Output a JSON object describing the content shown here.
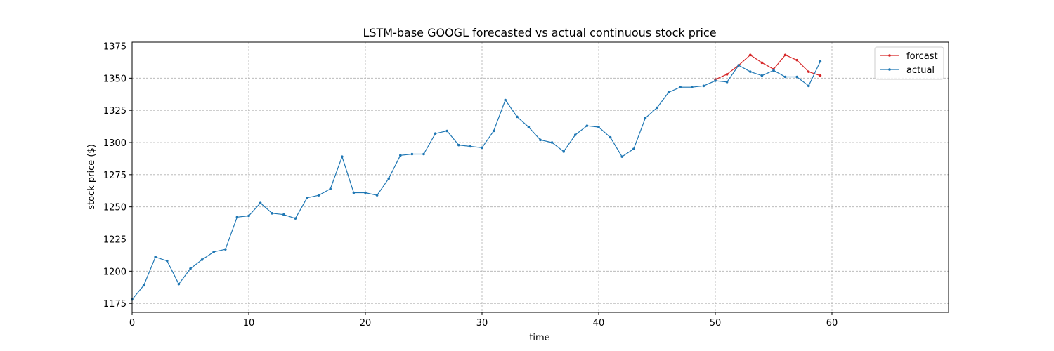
{
  "chart_data": {
    "type": "line",
    "title": "LSTM-base GOOGL forecasted vs actual continuous stock price",
    "xlabel": "time",
    "ylabel": "stock price ($)",
    "xlim": [
      0,
      70
    ],
    "ylim": [
      1168,
      1378
    ],
    "xticks": [
      0,
      10,
      20,
      30,
      40,
      50,
      60
    ],
    "yticks": [
      1175,
      1200,
      1225,
      1250,
      1275,
      1300,
      1325,
      1350,
      1375
    ],
    "grid": true,
    "legend_position": "top-right",
    "series": [
      {
        "name": "forcast",
        "color": "#d62728",
        "x": [
          50,
          51,
          52,
          53,
          54,
          55,
          56,
          57,
          58,
          59
        ],
        "y": [
          1349,
          1353,
          1360,
          1368,
          1362,
          1357,
          1368,
          1364,
          1355,
          1352
        ]
      },
      {
        "name": "actual",
        "color": "#1f77b4",
        "x": [
          0,
          1,
          2,
          3,
          4,
          5,
          6,
          7,
          8,
          9,
          10,
          11,
          12,
          13,
          14,
          15,
          16,
          17,
          18,
          19,
          20,
          21,
          22,
          23,
          24,
          25,
          26,
          27,
          28,
          29,
          30,
          31,
          32,
          33,
          34,
          35,
          36,
          37,
          38,
          39,
          40,
          41,
          42,
          43,
          44,
          45,
          46,
          47,
          48,
          49,
          50,
          51,
          52,
          53,
          54,
          55,
          56,
          57,
          58,
          59
        ],
        "y": [
          1178,
          1189,
          1211,
          1208,
          1190,
          1202,
          1209,
          1215,
          1217,
          1242,
          1243,
          1253,
          1245,
          1244,
          1241,
          1257,
          1259,
          1264,
          1289,
          1261,
          1261,
          1259,
          1272,
          1290,
          1291,
          1291,
          1307,
          1309,
          1298,
          1297,
          1296,
          1309,
          1333,
          1320,
          1312,
          1302,
          1300,
          1293,
          1306,
          1313,
          1312,
          1304,
          1289,
          1295,
          1319,
          1327,
          1339,
          1343,
          1343,
          1344,
          1348,
          1347,
          1360,
          1355,
          1352,
          1356,
          1351,
          1351,
          1344,
          1363
        ]
      }
    ]
  }
}
